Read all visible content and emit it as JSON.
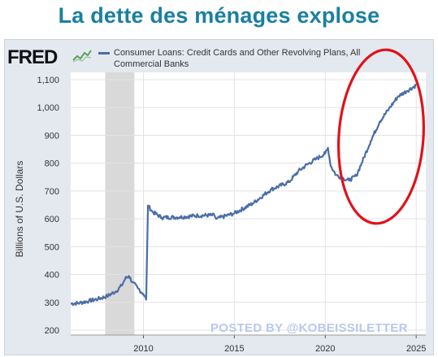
{
  "headline": "La dette des ménages explose",
  "logo_text": "FRED",
  "logo_icon": "trend-line-icon",
  "watermark": "POSTED BY @KOBEISSILETTER",
  "colors": {
    "headline": "#1a7fa1",
    "series": "#4a6ea7",
    "recession": "#d9d9d9",
    "highlight": "#e0121b",
    "panel": "#e4e9f0"
  },
  "chart_data": {
    "type": "line",
    "title": "",
    "xlabel": "",
    "ylabel": "Billions of U.S. Dollars",
    "xlim": [
      2006.0,
      2025.3
    ],
    "ylim": [
      200,
      1100
    ],
    "xticks": [
      "2010",
      "2015",
      "2020",
      "2025"
    ],
    "yticks": [
      "200",
      "300",
      "400",
      "500",
      "600",
      "700",
      "800",
      "900",
      "1,000",
      "1,100"
    ],
    "grid": "horizontal",
    "legend": "top-left",
    "recession_shading": [
      [
        2007.9,
        2009.5
      ]
    ],
    "annotation": "red ellipse around 2021–2025 surge",
    "series": [
      {
        "name": "Consumer Loans: Credit Cards and Other Revolving Plans, All Commercial Banks",
        "points": [
          [
            2006.0,
            295
          ],
          [
            2006.5,
            298
          ],
          [
            2007.0,
            305
          ],
          [
            2007.5,
            312
          ],
          [
            2008.0,
            322
          ],
          [
            2008.5,
            340
          ],
          [
            2008.8,
            360
          ],
          [
            2009.0,
            385
          ],
          [
            2009.2,
            395
          ],
          [
            2009.4,
            372
          ],
          [
            2009.7,
            350
          ],
          [
            2010.0,
            330
          ],
          [
            2010.15,
            310
          ],
          [
            2010.25,
            648
          ],
          [
            2010.5,
            625
          ],
          [
            2011.0,
            605
          ],
          [
            2012.0,
            606
          ],
          [
            2013.0,
            612
          ],
          [
            2013.9,
            613
          ],
          [
            2014.0,
            600
          ],
          [
            2015.0,
            620
          ],
          [
            2016.0,
            655
          ],
          [
            2017.0,
            705
          ],
          [
            2018.0,
            732
          ],
          [
            2018.5,
            770
          ],
          [
            2019.0,
            795
          ],
          [
            2019.5,
            815
          ],
          [
            2020.0,
            835
          ],
          [
            2020.15,
            855
          ],
          [
            2020.3,
            790
          ],
          [
            2020.6,
            757
          ],
          [
            2021.0,
            745
          ],
          [
            2021.3,
            738
          ],
          [
            2021.7,
            755
          ],
          [
            2022.0,
            800
          ],
          [
            2022.5,
            880
          ],
          [
            2023.0,
            950
          ],
          [
            2023.5,
            995
          ],
          [
            2024.0,
            1040
          ],
          [
            2024.5,
            1060
          ],
          [
            2025.0,
            1080
          ]
        ]
      }
    ]
  }
}
